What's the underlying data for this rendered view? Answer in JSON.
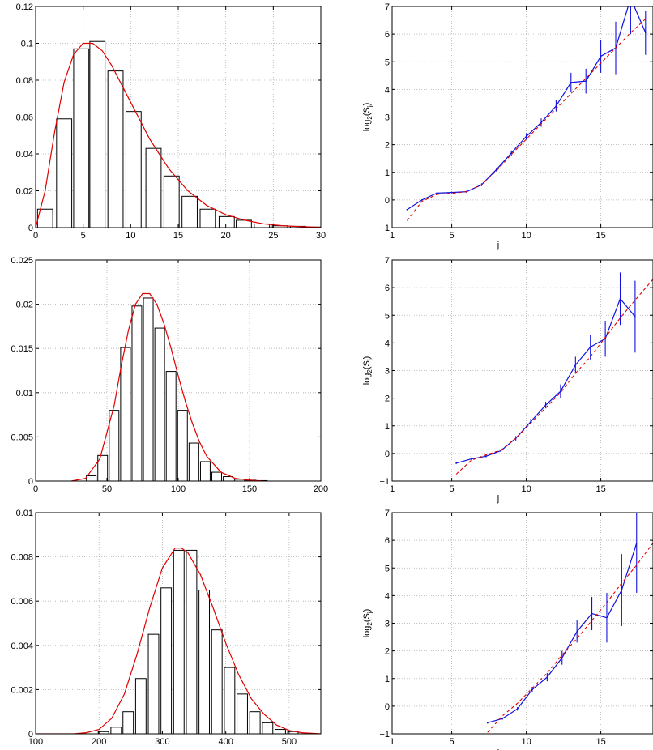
{
  "figure": {
    "background": "#ffffff",
    "colors": {
      "bar_fill": "#ffffff",
      "bar_edge": "#000000",
      "fit_curve": "#e00000",
      "data_line": "#1010e0",
      "reference_line": "#e00000",
      "grid": "#b0b0b0"
    }
  },
  "chart_data": [
    {
      "type": "bar",
      "panel": "histogram-row1",
      "title": "",
      "xlabel": "",
      "ylabel": "",
      "xlim": [
        0,
        30
      ],
      "ylim": [
        0,
        0.12
      ],
      "xticks": [
        0,
        5,
        10,
        15,
        20,
        25,
        30
      ],
      "yticks": [
        0,
        0.02,
        0.04,
        0.06,
        0.08,
        0.1,
        0.12
      ],
      "xtick_labels": [
        "0",
        "5",
        "10",
        "15",
        "20",
        "25",
        "30"
      ],
      "ytick_labels": [
        "0",
        "0.02",
        "0.04",
        "0.06",
        "0.08",
        "0.1",
        "0.12"
      ],
      "grid": true,
      "bar_width": 1.6,
      "x": [
        1.0,
        3.0,
        4.8,
        6.5,
        8.4,
        10.3,
        12.4,
        14.3,
        16.2,
        18.1,
        20.1,
        21.9,
        23.8,
        25.7,
        27.6,
        29.5
      ],
      "values": [
        0.01,
        0.059,
        0.097,
        0.101,
        0.085,
        0.063,
        0.043,
        0.028,
        0.017,
        0.01,
        0.006,
        0.004,
        0.002,
        0.001,
        0.0007,
        0.0003
      ],
      "curve": {
        "x": [
          0,
          1,
          2,
          3,
          4,
          5,
          6,
          7,
          8,
          9,
          10,
          11,
          12,
          13,
          14,
          15,
          16,
          18,
          20,
          22,
          24,
          26,
          28,
          30
        ],
        "y": [
          0,
          0.02,
          0.052,
          0.079,
          0.094,
          0.1,
          0.1,
          0.096,
          0.088,
          0.078,
          0.068,
          0.058,
          0.048,
          0.04,
          0.032,
          0.026,
          0.02,
          0.012,
          0.007,
          0.004,
          0.002,
          0.001,
          0.0005,
          0.0002
        ]
      }
    },
    {
      "type": "line",
      "panel": "logscale-row1",
      "title": "",
      "xlabel": "j",
      "ylabel": "log2(S_j)",
      "ylabel_parts": {
        "base": "log",
        "base_sub": "2",
        "open": "(S",
        "var_sub": "j",
        "close": ")"
      },
      "xlim": [
        1,
        18.5
      ],
      "ylim": [
        -1,
        7
      ],
      "xticks": [
        1,
        5,
        10,
        15
      ],
      "yticks": [
        -1,
        0,
        1,
        2,
        3,
        4,
        5,
        6,
        7
      ],
      "xtick_labels": [
        "1",
        "5",
        "10",
        "15"
      ],
      "ytick_labels": [
        "−1",
        "0",
        "1",
        "2",
        "3",
        "4",
        "5",
        "6",
        "7"
      ],
      "grid": true,
      "series": [
        {
          "role": "measured",
          "x": [
            2,
            3,
            4,
            5,
            6,
            7,
            8,
            9,
            10,
            11,
            12,
            13,
            14,
            15,
            16,
            17,
            18
          ],
          "y": [
            -0.35,
            0.0,
            0.25,
            0.27,
            0.3,
            0.55,
            1.1,
            1.7,
            2.3,
            2.8,
            3.4,
            4.25,
            4.3,
            5.2,
            5.5,
            7.3,
            6.05
          ],
          "err": [
            0.02,
            0.02,
            0.03,
            0.03,
            0.04,
            0.05,
            0.07,
            0.09,
            0.12,
            0.15,
            0.2,
            0.35,
            0.45,
            0.6,
            0.95,
            1.3,
            0.8
          ]
        },
        {
          "role": "fit",
          "x": [
            2,
            3,
            4,
            5,
            6,
            7,
            8,
            9,
            10,
            11,
            12,
            13,
            14,
            15,
            16,
            17,
            18
          ],
          "y": [
            -0.75,
            -0.05,
            0.2,
            0.24,
            0.3,
            0.55,
            1.05,
            1.65,
            2.2,
            2.75,
            3.3,
            3.85,
            4.4,
            4.95,
            5.5,
            6.05,
            6.55
          ]
        }
      ]
    },
    {
      "type": "bar",
      "panel": "histogram-row2",
      "title": "",
      "xlabel": "",
      "ylabel": "",
      "xlim": [
        0,
        200
      ],
      "ylim": [
        0,
        0.025
      ],
      "xticks": [
        0,
        50,
        100,
        150,
        200
      ],
      "yticks": [
        0,
        0.005,
        0.01,
        0.015,
        0.02,
        0.025
      ],
      "xtick_labels": [
        "0",
        "50",
        "100",
        "150",
        "200"
      ],
      "ytick_labels": [
        "0",
        "0.005",
        "0.01",
        "0.015",
        "0.02",
        "0.025"
      ],
      "grid": true,
      "bar_width": 6.8,
      "x": [
        39,
        47,
        55,
        63,
        71,
        79,
        87,
        95,
        103,
        111,
        119,
        127,
        135,
        143,
        151,
        159
      ],
      "values": [
        0.0006,
        0.0029,
        0.008,
        0.0151,
        0.0198,
        0.0207,
        0.0173,
        0.0124,
        0.008,
        0.0043,
        0.0022,
        0.001,
        0.0005,
        0.0002,
        0.0001,
        5e-05
      ],
      "curve": {
        "x": [
          25,
          35,
          45,
          55,
          60,
          65,
          70,
          75,
          80,
          85,
          90,
          95,
          100,
          105,
          110,
          115,
          120,
          130,
          140,
          150,
          160
        ],
        "y": [
          0,
          0.0003,
          0.0025,
          0.0085,
          0.013,
          0.017,
          0.02,
          0.0212,
          0.0212,
          0.02,
          0.0178,
          0.015,
          0.0119,
          0.009,
          0.0065,
          0.0044,
          0.0028,
          0.001,
          0.0003,
          0.0001,
          0
        ]
      }
    },
    {
      "type": "line",
      "panel": "logscale-row2",
      "title": "",
      "xlabel": "j",
      "ylabel": "log2(S_j)",
      "ylabel_parts": {
        "base": "log",
        "base_sub": "2",
        "open": "(S",
        "var_sub": "j",
        "close": ")"
      },
      "xlim": [
        1,
        18.5
      ],
      "ylim": [
        -1,
        7
      ],
      "xticks": [
        1,
        5,
        10,
        15
      ],
      "yticks": [
        -1,
        0,
        1,
        2,
        3,
        4,
        5,
        6,
        7
      ],
      "xtick_labels": [
        "1",
        "5",
        "10",
        "15"
      ],
      "ytick_labels": [
        "−1",
        "0",
        "1",
        "2",
        "3",
        "4",
        "5",
        "6",
        "7"
      ],
      "grid": true,
      "series": [
        {
          "role": "measured",
          "x": [
            5.3,
            6.3,
            7.3,
            8.3,
            9.3,
            10.3,
            11.3,
            12.3,
            13.3,
            14.3,
            15.3,
            16.3,
            17.3
          ],
          "y": [
            -0.35,
            -0.2,
            -0.1,
            0.1,
            0.55,
            1.15,
            1.75,
            2.25,
            3.2,
            3.85,
            4.15,
            5.6,
            4.95
          ],
          "err": [
            0.03,
            0.03,
            0.04,
            0.05,
            0.08,
            0.1,
            0.12,
            0.25,
            0.3,
            0.45,
            0.65,
            0.95,
            1.3
          ]
        },
        {
          "role": "fit",
          "x": [
            5.3,
            6.3,
            7.3,
            8.3,
            9.3,
            10.3,
            11.3,
            12.3,
            13.3,
            14.3,
            15.3,
            16.3,
            17.3,
            18.5
          ],
          "y": [
            -0.75,
            -0.25,
            -0.05,
            0.12,
            0.55,
            1.1,
            1.65,
            2.2,
            2.9,
            3.5,
            4.2,
            4.9,
            5.55,
            6.3
          ]
        }
      ]
    },
    {
      "type": "bar",
      "panel": "histogram-row3",
      "title": "",
      "xlabel": "",
      "ylabel": "",
      "xlim": [
        100,
        550
      ],
      "ylim": [
        0,
        0.01
      ],
      "xticks": [
        100,
        200,
        300,
        400,
        500
      ],
      "yticks": [
        0,
        0.002,
        0.004,
        0.006,
        0.008,
        0.01
      ],
      "xtick_labels": [
        "100",
        "200",
        "300",
        "400",
        "500"
      ],
      "ytick_labels": [
        "0",
        "0.002",
        "0.004",
        "0.006",
        "0.008",
        "0.01"
      ],
      "grid": true,
      "bar_width": 16.5,
      "x": [
        207,
        227,
        246,
        266,
        286,
        306,
        326,
        346,
        366,
        386,
        406,
        426,
        446,
        466,
        486,
        506
      ],
      "values": [
        0.0001,
        0.0003,
        0.001,
        0.0025,
        0.0045,
        0.0066,
        0.0083,
        0.0083,
        0.0065,
        0.0047,
        0.003,
        0.0018,
        0.001,
        0.0005,
        0.0002,
        0.0001
      ],
      "curve": {
        "x": [
          100,
          160,
          180,
          200,
          220,
          240,
          260,
          280,
          300,
          320,
          330,
          340,
          360,
          380,
          400,
          420,
          440,
          460,
          480,
          500,
          520,
          550
        ],
        "y": [
          0,
          0,
          5e-05,
          0.0002,
          0.0007,
          0.0018,
          0.0036,
          0.0057,
          0.0075,
          0.0084,
          0.0084,
          0.0082,
          0.0072,
          0.0057,
          0.0041,
          0.0027,
          0.0016,
          0.0009,
          0.0004,
          0.00015,
          5e-05,
          0
        ]
      }
    },
    {
      "type": "line",
      "panel": "logscale-row3",
      "title": "",
      "xlabel": "j",
      "ylabel": "log2(S_j)",
      "ylabel_parts": {
        "base": "log",
        "base_sub": "2",
        "open": "(S",
        "var_sub": "j",
        "close": ")"
      },
      "xlim": [
        1,
        18.5
      ],
      "ylim": [
        -1,
        7
      ],
      "xticks": [
        1,
        5,
        10,
        15
      ],
      "yticks": [
        -1,
        0,
        1,
        2,
        3,
        4,
        5,
        6,
        7
      ],
      "xtick_labels": [
        "1",
        "5",
        "10",
        "15"
      ],
      "ytick_labels": [
        "−1",
        "0",
        "1",
        "2",
        "3",
        "4",
        "5",
        "6",
        "7"
      ],
      "grid": true,
      "series": [
        {
          "role": "measured",
          "x": [
            7.4,
            8.4,
            9.4,
            10.4,
            11.4,
            12.4,
            13.4,
            14.4,
            15.4,
            16.4,
            17.4
          ],
          "y": [
            -0.6,
            -0.45,
            -0.1,
            0.6,
            1.05,
            1.75,
            2.7,
            3.35,
            3.2,
            4.2,
            5.9
          ],
          "err": [
            0.03,
            0.04,
            0.06,
            0.1,
            0.15,
            0.25,
            0.4,
            0.6,
            0.9,
            1.3,
            1.8
          ]
        },
        {
          "role": "fit",
          "x": [
            7.4,
            8.4,
            9.4,
            10.4,
            11.4,
            12.4,
            13.4,
            14.4,
            15.4,
            16.4,
            17.4,
            18.5
          ],
          "y": [
            -0.95,
            -0.35,
            0.1,
            0.65,
            1.2,
            1.85,
            2.45,
            3.1,
            3.75,
            4.45,
            5.1,
            5.9
          ]
        }
      ]
    }
  ]
}
